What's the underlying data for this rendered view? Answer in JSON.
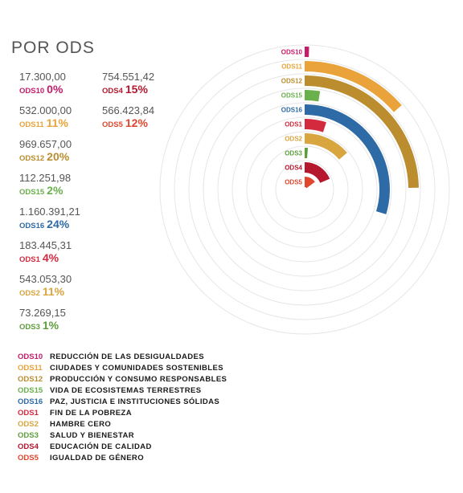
{
  "title": "POR ODS",
  "chart_data": {
    "type": "radial-bar",
    "title": "POR ODS",
    "series": [
      {
        "code": "ODS10",
        "value": "17.300,00",
        "percent": "0%",
        "pct_num": 0.4,
        "color": "#c31c6b",
        "name": "REDUCCIÓN DE LAS DESIGUALDADES"
      },
      {
        "code": "ODS11",
        "value": "532.000,00",
        "percent": "11%",
        "pct_num": 11,
        "color": "#e9a33a",
        "name": "CIUDADES Y COMUNIDADES SOSTENIBLES"
      },
      {
        "code": "ODS12",
        "value": "969.657,00",
        "percent": "20%",
        "pct_num": 20,
        "color": "#bb8d2f",
        "name": "PRODUCCIÓN Y CONSUMO RESPONSABLES"
      },
      {
        "code": "ODS15",
        "value": "112.251,98",
        "percent": "2%",
        "pct_num": 2,
        "color": "#6ab04c",
        "name": "VIDA DE ECOSISTEMAS TERRESTRES"
      },
      {
        "code": "ODS16",
        "value": "1.160.391,21",
        "percent": "24%",
        "pct_num": 24,
        "color": "#2e6aa6",
        "name": "PAZ, JUSTICIA E INSTITUCIONES SÓLIDAS"
      },
      {
        "code": "ODS1",
        "value": "183.445,31",
        "percent": "4%",
        "pct_num": 4,
        "color": "#d32a3e",
        "name": "FIN DE LA POBREZA"
      },
      {
        "code": "ODS2",
        "value": "543.053,30",
        "percent": "11%",
        "pct_num": 11,
        "color": "#d8a53e",
        "name": "HAMBRE CERO"
      },
      {
        "code": "ODS3",
        "value": "73.269,15",
        "percent": "1%",
        "pct_num": 1,
        "color": "#5d9e3b",
        "name": "SALUD Y BIENESTAR"
      },
      {
        "code": "ODS4",
        "value": "754.551,42",
        "percent": "15%",
        "pct_num": 15,
        "color": "#b5182e",
        "name": "EDUCACIÓN DE CALIDAD"
      },
      {
        "code": "ODS5",
        "value": "566.423,84",
        "percent": "12%",
        "pct_num": 12,
        "color": "#e0462c",
        "name": "IGUALDAD DE GÉNERO"
      }
    ],
    "grid": true,
    "legend_position": "bottom-left"
  }
}
